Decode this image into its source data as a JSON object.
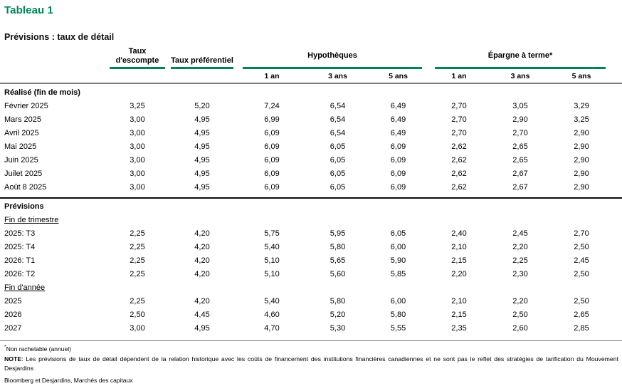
{
  "title": "Tableau 1",
  "subtitle": "Prévisions : taux de détail",
  "accent_color": "#00855A",
  "table": {
    "group_headers": [
      {
        "label": "Taux d'escompte"
      },
      {
        "label": "Taux préférentiel"
      },
      {
        "label": "Hypothèques",
        "subcolumns": [
          "1 an",
          "3 ans",
          "5 ans"
        ]
      },
      {
        "label": "Épargne à terme*",
        "subcolumns": [
          "1 an",
          "3 ans",
          "5 ans"
        ]
      }
    ],
    "sections": [
      {
        "heading": "Réalisé (fin de mois)",
        "rows": [
          {
            "label": "Février 2025",
            "values": [
              "3,25",
              "5,20",
              "7,24",
              "6,54",
              "6,49",
              "2,70",
              "3,05",
              "3,29"
            ]
          },
          {
            "label": "Mars 2025",
            "values": [
              "3,00",
              "4,95",
              "6,99",
              "6,54",
              "6,49",
              "2,70",
              "2,90",
              "3,25"
            ]
          },
          {
            "label": "Avril 2025",
            "values": [
              "3,00",
              "4,95",
              "6,09",
              "6,54",
              "6,49",
              "2,70",
              "2,70",
              "2,90"
            ]
          },
          {
            "label": "Mai 2025",
            "values": [
              "3,00",
              "4,95",
              "6,09",
              "6,05",
              "6,09",
              "2,62",
              "2,65",
              "2,90"
            ]
          },
          {
            "label": "Juin 2025",
            "values": [
              "3,00",
              "4,95",
              "6,09",
              "6,05",
              "6,09",
              "2,62",
              "2,65",
              "2,90"
            ]
          },
          {
            "label": "Juilet 2025",
            "values": [
              "3,00",
              "4,95",
              "6,09",
              "6,05",
              "6,09",
              "2,62",
              "2,67",
              "2,90"
            ]
          },
          {
            "label": "Août 8 2025",
            "values": [
              "3,00",
              "4,95",
              "6,09",
              "6,05",
              "6,09",
              "2,62",
              "2,67",
              "2,90"
            ]
          }
        ]
      },
      {
        "heading": "Prévisions",
        "subsections": [
          {
            "heading": "Fin de trimestre",
            "rows": [
              {
                "label": "2025: T3",
                "values": [
                  "2,25",
                  "4,20",
                  "5,75",
                  "5,95",
                  "6,05",
                  "2,40",
                  "2,45",
                  "2,70"
                ]
              },
              {
                "label": "2025: T4",
                "values": [
                  "2,25",
                  "4,20",
                  "5,40",
                  "5,80",
                  "6,00",
                  "2,10",
                  "2,20",
                  "2,50"
                ]
              },
              {
                "label": "2026: T1",
                "values": [
                  "2,25",
                  "4,20",
                  "5,10",
                  "5,65",
                  "5,90",
                  "2,15",
                  "2,25",
                  "2,45"
                ]
              },
              {
                "label": "2026: T2",
                "values": [
                  "2,25",
                  "4,20",
                  "5,10",
                  "5,60",
                  "5,85",
                  "2,20",
                  "2,30",
                  "2,50"
                ]
              }
            ]
          },
          {
            "heading": "Fin d'année",
            "rows": [
              {
                "label": "2025",
                "values": [
                  "2,25",
                  "4,20",
                  "5,40",
                  "5,80",
                  "6,00",
                  "2,10",
                  "2,20",
                  "2,50"
                ]
              },
              {
                "label": "2026",
                "values": [
                  "2,50",
                  "4,45",
                  "4,60",
                  "5,20",
                  "5,80",
                  "2,15",
                  "2,50",
                  "2,65"
                ]
              },
              {
                "label": "2027",
                "values": [
                  "3,00",
                  "4,95",
                  "4,70",
                  "5,30",
                  "5,55",
                  "2,35",
                  "2,60",
                  "2,85"
                ]
              }
            ]
          }
        ]
      }
    ]
  },
  "footnotes": {
    "asterisk_marker": "*",
    "asterisk_text": "Non rachetable (annuel)",
    "note_label": "NOTE",
    "note_text": ": Les prévisions de taux de détail dépendent de la relation historique avec les coûts de financement des institutions financières canadiennes et ne sont pas le reflet des stratégies de tarification du Mouvement Desjardins",
    "source": "Bloomberg et Desjardins, Marchés des capitaux"
  }
}
